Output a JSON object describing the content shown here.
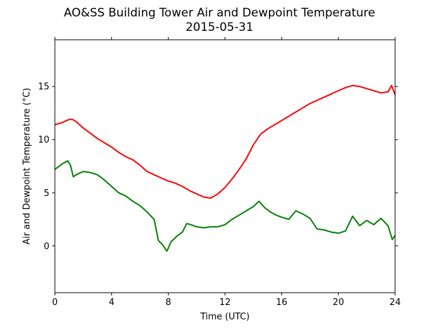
{
  "chart_data": {
    "type": "line",
    "title": "AO&SS Building Tower Air and Dewpoint Temperature",
    "subtitle": "2015-05-31",
    "xlabel": "Time (UTC)",
    "ylabel": "Air and Dewpoint Temperature (°C)",
    "xlim": [
      0,
      24
    ],
    "ylim": [
      -4.4,
      19.4
    ],
    "xticks": [
      0,
      4,
      8,
      12,
      16,
      20,
      24
    ],
    "yticks": [
      0,
      5,
      10,
      15
    ],
    "grid": false,
    "legend": "none",
    "series": [
      {
        "color": "#ff0000",
        "x": [
          0,
          0.5,
          1.0,
          1.25,
          1.5,
          2.0,
          2.5,
          3.0,
          3.5,
          4.0,
          4.5,
          5.0,
          5.5,
          6.0,
          6.5,
          7.0,
          7.5,
          8.0,
          8.5,
          9.0,
          9.5,
          10.0,
          10.5,
          11.0,
          11.5,
          12.0,
          12.5,
          13.0,
          13.5,
          14.0,
          14.5,
          15.0,
          15.5,
          16.0,
          16.5,
          17.0,
          17.5,
          18.0,
          18.5,
          19.0,
          19.5,
          20.0,
          20.5,
          21.0,
          21.5,
          22.0,
          22.5,
          23.0,
          23.5,
          23.75,
          24.0
        ],
        "values": [
          11.4,
          11.6,
          11.9,
          11.9,
          11.7,
          11.1,
          10.6,
          10.1,
          9.7,
          9.3,
          8.8,
          8.4,
          8.1,
          7.6,
          7.0,
          6.7,
          6.4,
          6.1,
          5.9,
          5.6,
          5.2,
          4.9,
          4.6,
          4.5,
          4.9,
          5.5,
          6.3,
          7.2,
          8.2,
          9.5,
          10.5,
          11.0,
          11.4,
          11.8,
          12.2,
          12.6,
          13.0,
          13.4,
          13.7,
          14.0,
          14.3,
          14.6,
          14.9,
          15.1,
          15.0,
          14.8,
          14.6,
          14.4,
          14.5,
          15.1,
          14.2
        ]
      },
      {
        "color": "#008000",
        "x": [
          0,
          0.5,
          0.9,
          1.1,
          1.3,
          1.5,
          2.0,
          2.5,
          3.0,
          3.5,
          4.0,
          4.5,
          5.0,
          5.5,
          6.0,
          6.5,
          7.0,
          7.3,
          7.6,
          7.9,
          8.2,
          8.6,
          9.0,
          9.3,
          9.6,
          10.0,
          10.5,
          11.0,
          11.5,
          12.0,
          12.5,
          13.0,
          13.5,
          14.0,
          14.4,
          14.8,
          15.2,
          15.6,
          16.0,
          16.5,
          17.0,
          17.5,
          18.0,
          18.5,
          19.0,
          19.5,
          20.0,
          20.5,
          21.0,
          21.5,
          22.0,
          22.5,
          23.0,
          23.5,
          23.8,
          24.0
        ],
        "values": [
          7.2,
          7.7,
          8.0,
          7.6,
          6.5,
          6.7,
          7.0,
          6.9,
          6.7,
          6.2,
          5.6,
          5.0,
          4.7,
          4.2,
          3.8,
          3.2,
          2.5,
          0.5,
          0.1,
          -0.5,
          0.4,
          0.9,
          1.3,
          2.1,
          2.0,
          1.8,
          1.7,
          1.8,
          1.8,
          2.0,
          2.5,
          2.9,
          3.3,
          3.7,
          4.2,
          3.6,
          3.2,
          2.9,
          2.7,
          2.5,
          3.3,
          3.0,
          2.6,
          1.6,
          1.5,
          1.3,
          1.2,
          1.4,
          2.8,
          1.9,
          2.4,
          2.0,
          2.6,
          1.9,
          0.6,
          1.0
        ]
      }
    ]
  }
}
